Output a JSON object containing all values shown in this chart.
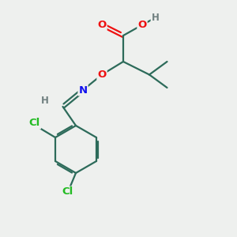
{
  "background_color": "#eef0ee",
  "bond_color": "#2d6b5a",
  "atom_colors": {
    "O": "#ee1111",
    "N": "#1111ee",
    "Cl": "#22bb22",
    "H_gray": "#708080",
    "C": "#2d6b5a"
  },
  "figsize": [
    3.0,
    3.0
  ],
  "dpi": 100
}
